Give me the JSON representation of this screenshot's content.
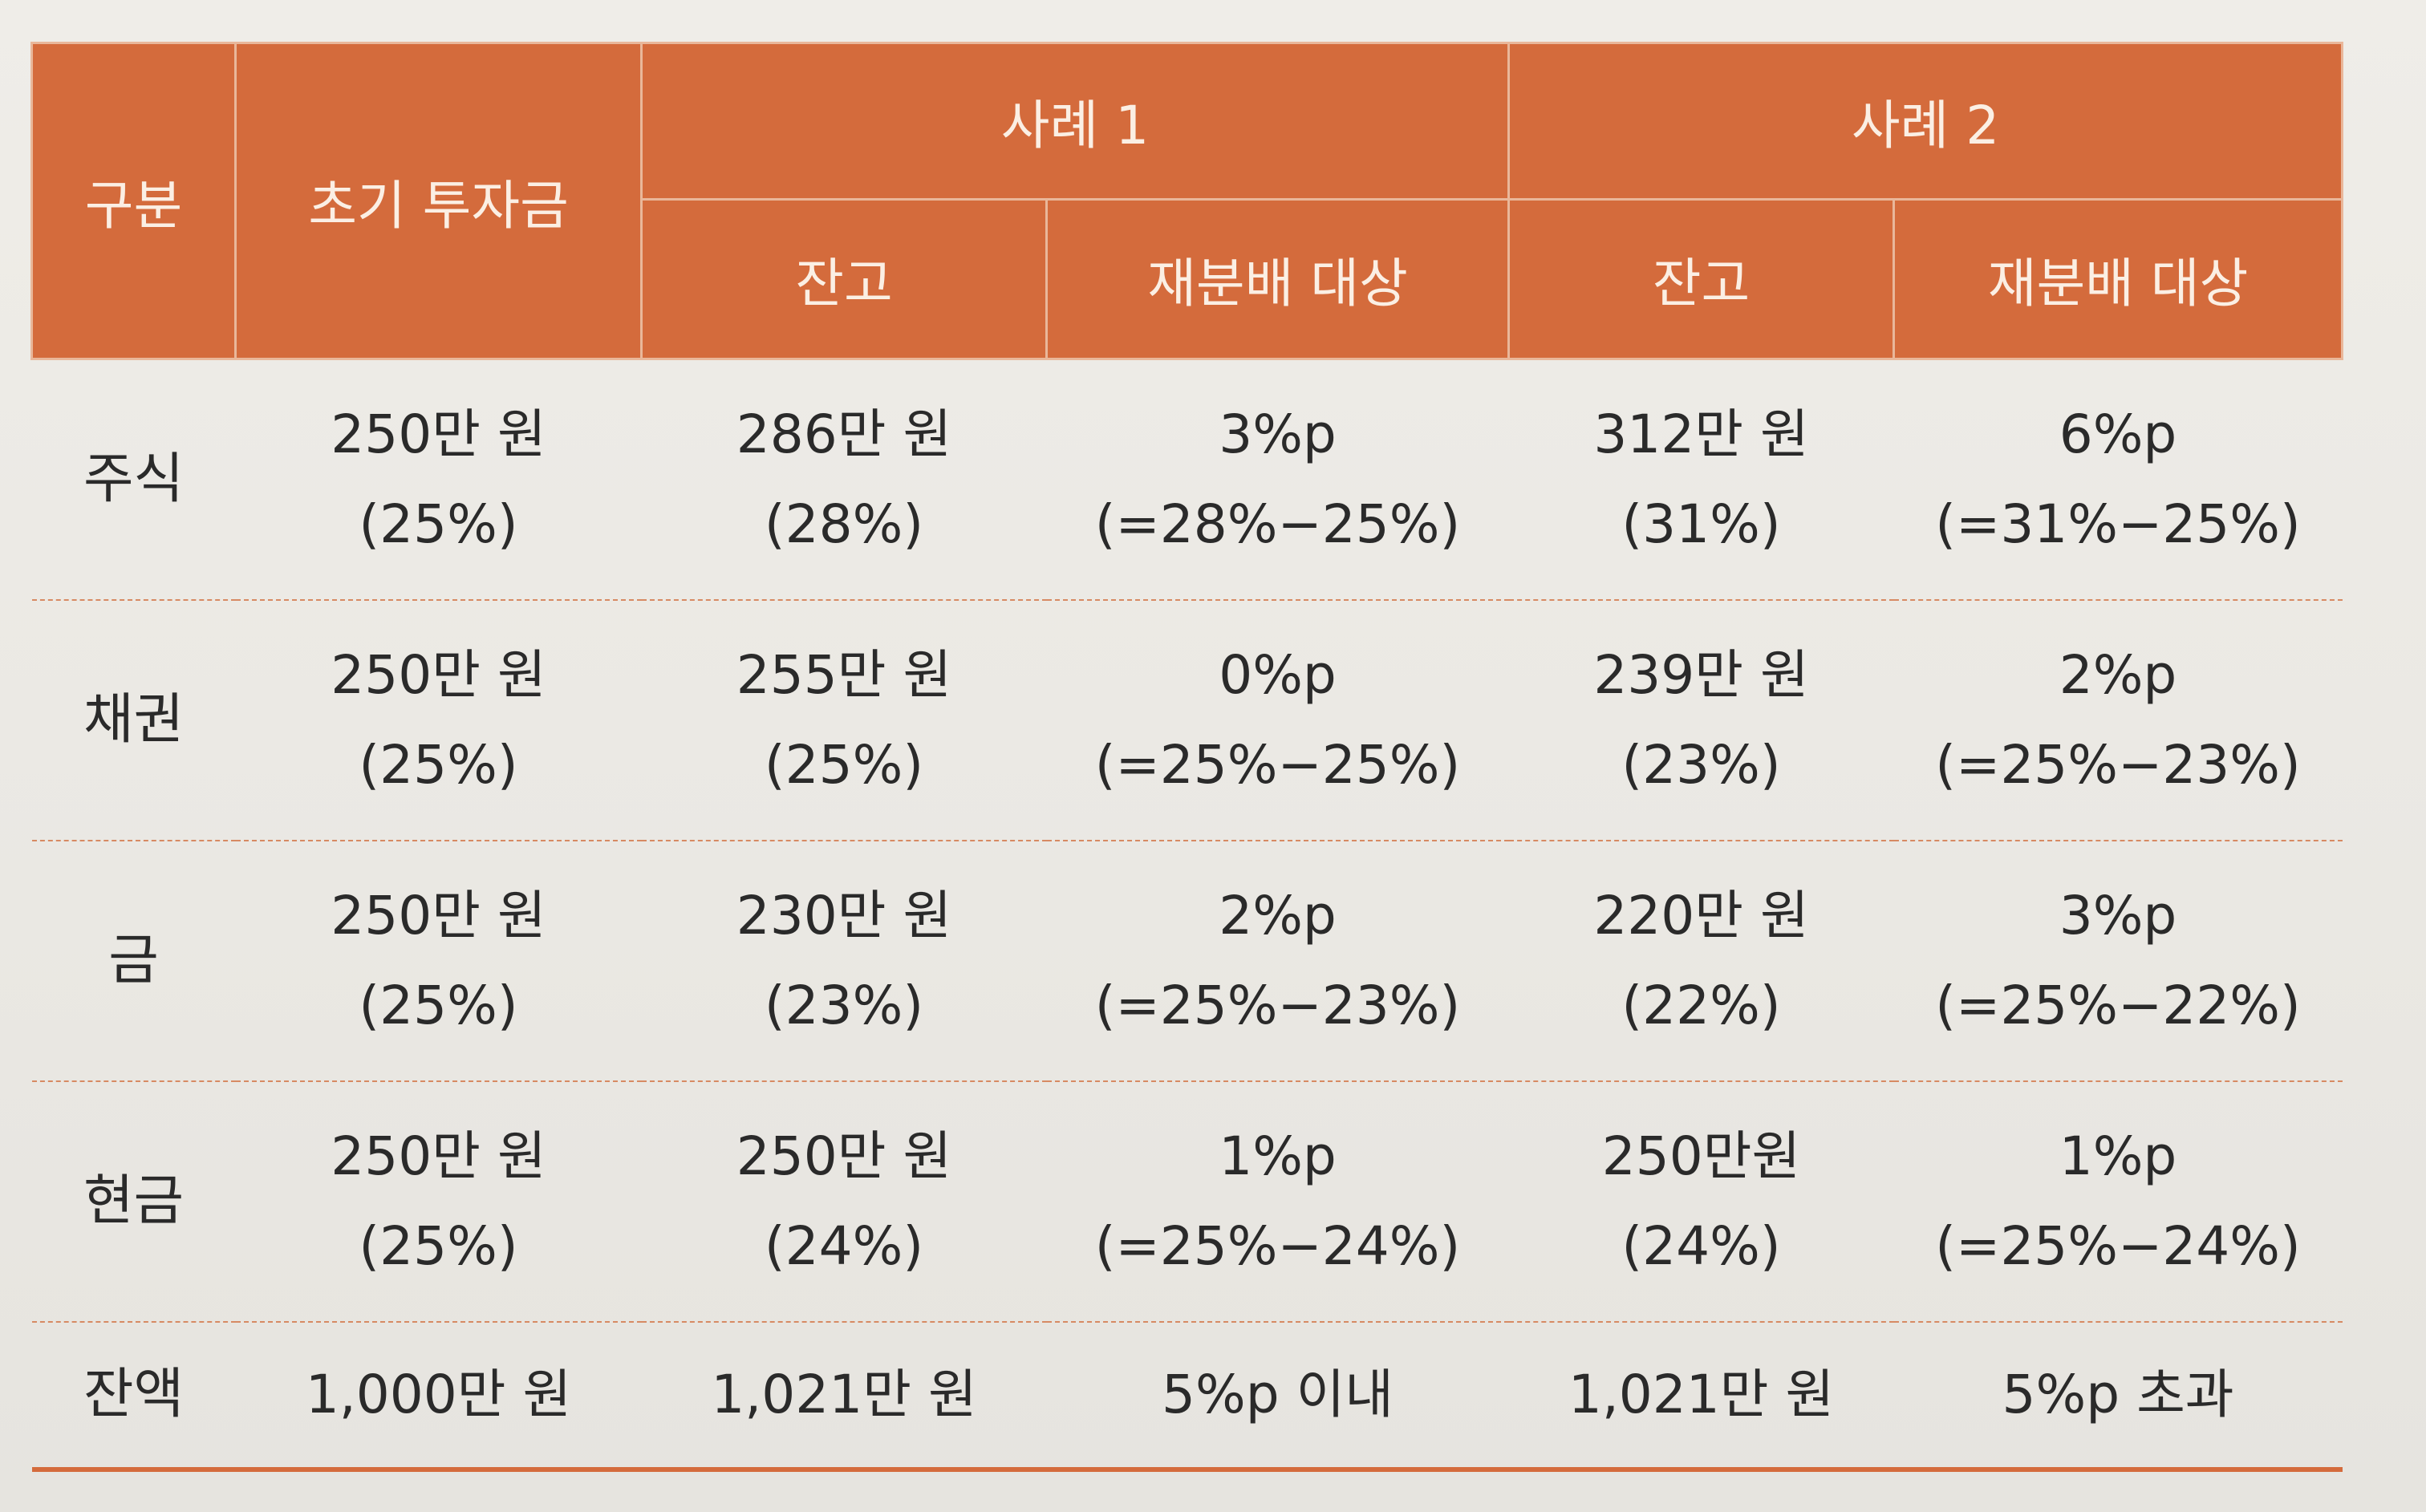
{
  "header": {
    "category": "구분",
    "initial": "초기 투자금",
    "case1": "사례 1",
    "case2": "사례 2",
    "balance": "잔고",
    "rebalance": "재분배 대상"
  },
  "rows": [
    {
      "label": "주식",
      "initial": [
        "250만 원",
        "(25%)"
      ],
      "case1_balance": [
        "286만 원",
        "(28%)"
      ],
      "case1_target": [
        "3%p",
        "(=28%−25%)"
      ],
      "case2_balance": [
        "312만 원",
        "(31%)"
      ],
      "case2_target": [
        "6%p",
        "(=31%−25%)"
      ]
    },
    {
      "label": "채권",
      "initial": [
        "250만 원",
        "(25%)"
      ],
      "case1_balance": [
        "255만 원",
        "(25%)"
      ],
      "case1_target": [
        "0%p",
        "(=25%−25%)"
      ],
      "case2_balance": [
        "239만 원",
        "(23%)"
      ],
      "case2_target": [
        "2%p",
        "(=25%−23%)"
      ]
    },
    {
      "label": "금",
      "initial": [
        "250만 원",
        "(25%)"
      ],
      "case1_balance": [
        "230만 원",
        "(23%)"
      ],
      "case1_target": [
        "2%p",
        "(=25%−23%)"
      ],
      "case2_balance": [
        "220만 원",
        "(22%)"
      ],
      "case2_target": [
        "3%p",
        "(=25%−22%)"
      ]
    },
    {
      "label": "현금",
      "initial": [
        "250만 원",
        "(25%)"
      ],
      "case1_balance": [
        "250만 원",
        "(24%)"
      ],
      "case1_target": [
        "1%p",
        "(=25%−24%)"
      ],
      "case2_balance": [
        "250만원",
        "(24%)"
      ],
      "case2_target": [
        "1%p",
        "(=25%−24%)"
      ]
    }
  ],
  "total": {
    "label": "잔액",
    "initial": "1,000만 원",
    "case1_balance": "1,021만 원",
    "case1_target": "5%p 이내",
    "case2_balance": "1,021만 원",
    "case2_target": "5%p 초과"
  }
}
